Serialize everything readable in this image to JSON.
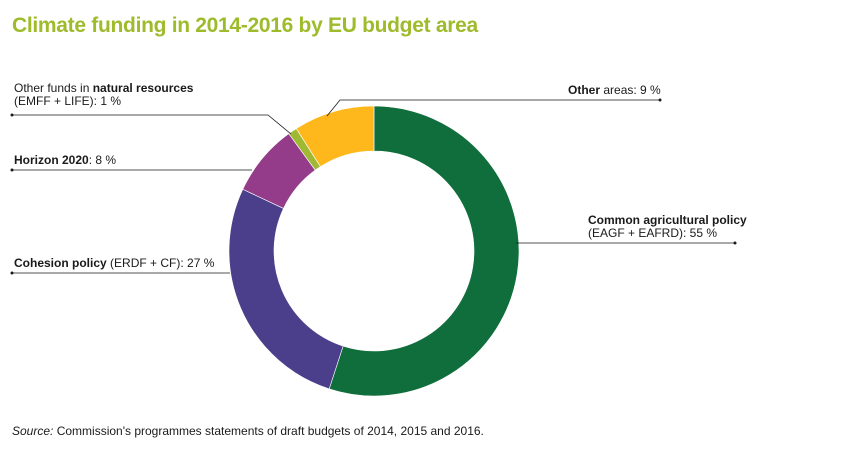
{
  "chart_data": {
    "type": "pie",
    "title": "Climate funding in 2014-2016 by EU budget area",
    "categories": [
      "Common agricultural policy (EAGF + EAFRD)",
      "Cohesion policy (ERDF + CF)",
      "Horizon 2020",
      "Other funds in natural resources (EMFF + LIFE)",
      "Other areas"
    ],
    "values": [
      55,
      27,
      8,
      1,
      9
    ],
    "unit": "%",
    "colors": [
      "#0f6e3b",
      "#4b3f8b",
      "#943c8a",
      "#9fb935",
      "#ffb81c"
    ],
    "legend": "none"
  },
  "labels": {
    "cap": {
      "bold": "Common agricultural policy",
      "detail": "(EAGF + EAFRD): 55 %"
    },
    "cohesion": {
      "bold": "Cohesion policy",
      "detail": " (ERDF + CF): 27 %"
    },
    "horizon": {
      "bold": "Horizon 2020",
      "detail": ": 8 %"
    },
    "natural": {
      "line1_plain": "Other funds in ",
      "line1_bold": "natural resources",
      "line2": "(EMFF + LIFE): 1 %"
    },
    "other": {
      "bold": "Other",
      "detail": " areas: 9 %"
    }
  },
  "source": {
    "prefix": "Source:",
    "text": " Commission's programmes statements of draft budgets of 2014, 2015 and 2016."
  }
}
